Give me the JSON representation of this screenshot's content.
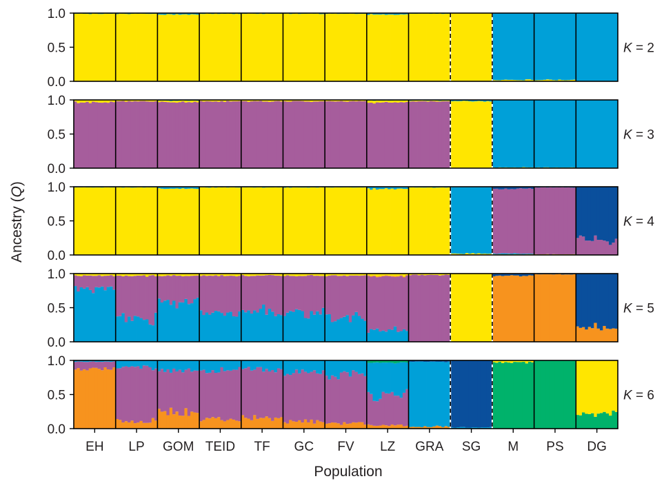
{
  "colors": {
    "yellow": "#ffe600",
    "blue": "#00a0d8",
    "purple": "#a65d9c",
    "orange": "#f7931e",
    "navy": "#0a4f9c",
    "green": "#00b26b"
  },
  "chart_data": {
    "type": "bar",
    "stacked": true,
    "ylabel_prefix": "Ancestry (",
    "ylabel_var": "Q",
    "ylabel_suffix": ")",
    "xlabel": "Population",
    "ylim": [
      0,
      1
    ],
    "yticks": [
      "0.0",
      "0.5",
      "1.0"
    ],
    "categories": [
      "EH",
      "LP",
      "GOM",
      "TEID",
      "TF",
      "GC",
      "FV",
      "LZ",
      "GRA",
      "SG",
      "M",
      "PS",
      "DG"
    ],
    "dashed_boundaries_after": [
      "GRA",
      "SG"
    ],
    "panels": [
      {
        "k_var": "K",
        "k_eq": " = 2",
        "order": [
          "yellow",
          "blue"
        ],
        "mean_ancestry": [
          [
            0.99,
            0.01
          ],
          [
            0.99,
            0.01
          ],
          [
            0.98,
            0.02
          ],
          [
            0.99,
            0.01
          ],
          [
            0.99,
            0.01
          ],
          [
            0.99,
            0.01
          ],
          [
            0.99,
            0.01
          ],
          [
            0.98,
            0.02
          ],
          [
            0.99,
            0.01
          ],
          [
            1.0,
            0.0
          ],
          [
            0.02,
            0.98
          ],
          [
            0.02,
            0.98
          ],
          [
            0.0,
            1.0
          ]
        ]
      },
      {
        "k_var": "K",
        "k_eq": " = 3",
        "order": [
          "purple",
          "yellow",
          "blue"
        ],
        "mean_ancestry": [
          [
            0.97,
            0.03,
            0.0
          ],
          [
            0.98,
            0.02,
            0.0
          ],
          [
            0.97,
            0.02,
            0.01
          ],
          [
            0.98,
            0.02,
            0.0
          ],
          [
            0.98,
            0.02,
            0.0
          ],
          [
            0.98,
            0.02,
            0.0
          ],
          [
            0.98,
            0.02,
            0.0
          ],
          [
            0.96,
            0.03,
            0.01
          ],
          [
            0.98,
            0.01,
            0.01
          ],
          [
            0.0,
            0.98,
            0.02
          ],
          [
            0.0,
            0.01,
            0.99
          ],
          [
            0.0,
            0.01,
            0.99
          ],
          [
            0.0,
            0.0,
            1.0
          ]
        ]
      },
      {
        "k_var": "K",
        "k_eq": " = 4",
        "order": [
          "yellow",
          "blue",
          "purple",
          "navy"
        ],
        "mean_ancestry": [
          [
            0.99,
            0.01,
            0.0,
            0.0
          ],
          [
            0.99,
            0.01,
            0.0,
            0.0
          ],
          [
            0.97,
            0.03,
            0.0,
            0.0
          ],
          [
            0.99,
            0.01,
            0.0,
            0.0
          ],
          [
            0.99,
            0.01,
            0.0,
            0.0
          ],
          [
            0.99,
            0.01,
            0.0,
            0.0
          ],
          [
            0.99,
            0.01,
            0.0,
            0.0
          ],
          [
            0.97,
            0.03,
            0.0,
            0.0
          ],
          [
            0.99,
            0.01,
            0.0,
            0.0
          ],
          [
            0.02,
            0.98,
            0.0,
            0.0
          ],
          [
            0.01,
            0.01,
            0.95,
            0.03
          ],
          [
            0.01,
            0.0,
            0.98,
            0.01
          ],
          [
            0.0,
            0.0,
            0.22,
            0.78
          ]
        ]
      },
      {
        "k_var": "K",
        "k_eq": " = 5",
        "order": [
          "blue",
          "purple",
          "orange",
          "yellow",
          "navy"
        ],
        "mean_ancestry": [
          [
            0.77,
            0.2,
            0.0,
            0.03,
            0.0
          ],
          [
            0.33,
            0.64,
            0.0,
            0.03,
            0.0
          ],
          [
            0.57,
            0.4,
            0.0,
            0.03,
            0.0
          ],
          [
            0.41,
            0.56,
            0.0,
            0.03,
            0.0
          ],
          [
            0.46,
            0.51,
            0.0,
            0.03,
            0.0
          ],
          [
            0.43,
            0.54,
            0.0,
            0.03,
            0.0
          ],
          [
            0.37,
            0.6,
            0.0,
            0.03,
            0.0
          ],
          [
            0.17,
            0.79,
            0.01,
            0.03,
            0.0
          ],
          [
            0.0,
            0.98,
            0.0,
            0.02,
            0.0
          ],
          [
            0.0,
            0.0,
            0.0,
            1.0,
            0.0
          ],
          [
            0.0,
            0.0,
            0.97,
            0.0,
            0.03
          ],
          [
            0.0,
            0.0,
            0.99,
            0.0,
            0.01
          ],
          [
            0.0,
            0.0,
            0.22,
            0.0,
            0.78
          ]
        ]
      },
      {
        "k_var": "K",
        "k_eq": " = 6",
        "order": [
          "orange",
          "purple",
          "blue",
          "navy",
          "green",
          "yellow"
        ],
        "mean_ancestry": [
          [
            0.88,
            0.1,
            0.02,
            0.0,
            0.0,
            0.0
          ],
          [
            0.12,
            0.78,
            0.1,
            0.0,
            0.0,
            0.0
          ],
          [
            0.24,
            0.61,
            0.15,
            0.0,
            0.0,
            0.0
          ],
          [
            0.12,
            0.74,
            0.14,
            0.0,
            0.0,
            0.0
          ],
          [
            0.15,
            0.71,
            0.14,
            0.0,
            0.0,
            0.0
          ],
          [
            0.1,
            0.72,
            0.18,
            0.0,
            0.0,
            0.0
          ],
          [
            0.08,
            0.72,
            0.2,
            0.0,
            0.0,
            0.0
          ],
          [
            0.05,
            0.45,
            0.47,
            0.0,
            0.03,
            0.0
          ],
          [
            0.03,
            0.0,
            0.95,
            0.02,
            0.0,
            0.0
          ],
          [
            0.0,
            0.0,
            0.02,
            0.98,
            0.0,
            0.0
          ],
          [
            0.0,
            0.0,
            0.0,
            0.0,
            0.97,
            0.03
          ],
          [
            0.0,
            0.0,
            0.0,
            0.0,
            1.0,
            0.0
          ],
          [
            0.0,
            0.0,
            0.0,
            0.0,
            0.22,
            0.78
          ]
        ]
      }
    ]
  }
}
